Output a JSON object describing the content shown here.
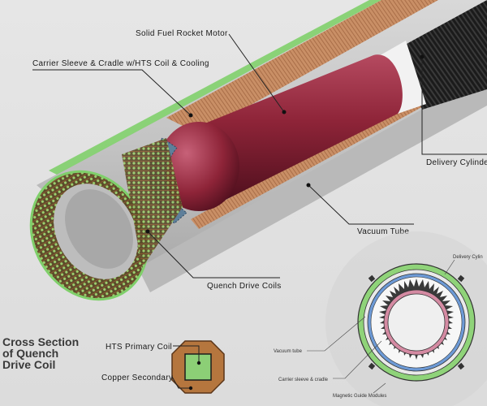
{
  "main_diagram": {
    "labels": {
      "motor": "Solid Fuel Rocket Motor",
      "carrier": "Carrier Sleeve & Cradle w/HTS Coil & Cooling",
      "delivery": "Delivery Cylinde",
      "vacuum": "Vacuum Tube",
      "quench": "Quench Drive Coils"
    }
  },
  "coil_section": {
    "title_lines": [
      "Cross Section",
      "of Quench",
      "Drive Coil"
    ],
    "labels": {
      "primary": "HTS Primary Coil",
      "secondary": "Copper Secondary"
    }
  },
  "ring_section": {
    "labels": {
      "delivery": "Delivery Cylin",
      "vacuum": "Vacuum tube",
      "carrier": "Carrier sleeve & cradle",
      "magnetic": "Magnetic Guide Modules"
    }
  },
  "colors": {
    "motor": "#8e2438",
    "tube": "#c9c9c9",
    "copper": "#b87a52",
    "coil_green": "#7fcf6a",
    "ring_blue": "#6d9ad6",
    "ring_pink": "#d48aa2"
  }
}
